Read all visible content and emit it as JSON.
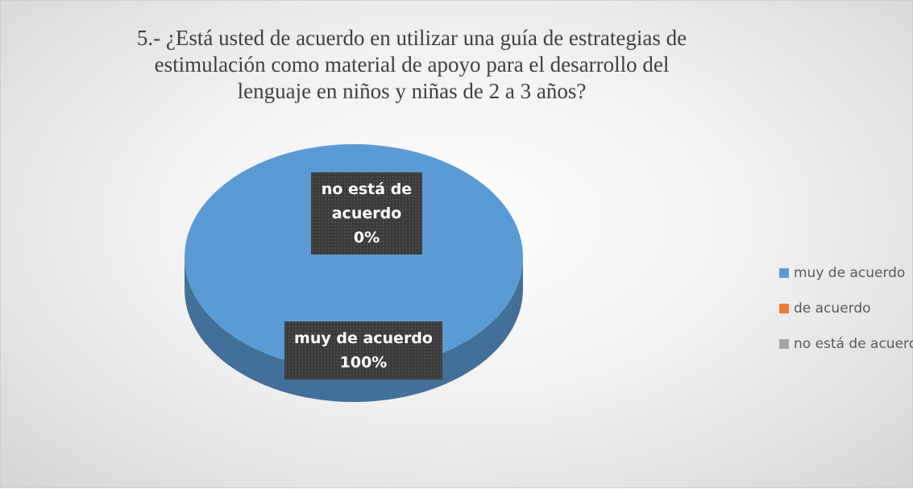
{
  "chart_data": {
    "type": "pie",
    "title": "5.- ¿Está usted de acuerdo en utilizar una guía de estrategias de estimulación como material de apoyo para el desarrollo del lenguaje en niños y niñas de 2 a 3 años?",
    "categories": [
      "muy de acuerdo",
      "de acuerdo",
      "no está de acuerdo"
    ],
    "values": [
      100,
      0,
      0
    ],
    "value_labels": [
      "100%",
      null,
      "0%"
    ],
    "colors": [
      "#5b9bd5",
      "#ed7d31",
      "#a5a5a5"
    ],
    "legend": "right"
  }
}
